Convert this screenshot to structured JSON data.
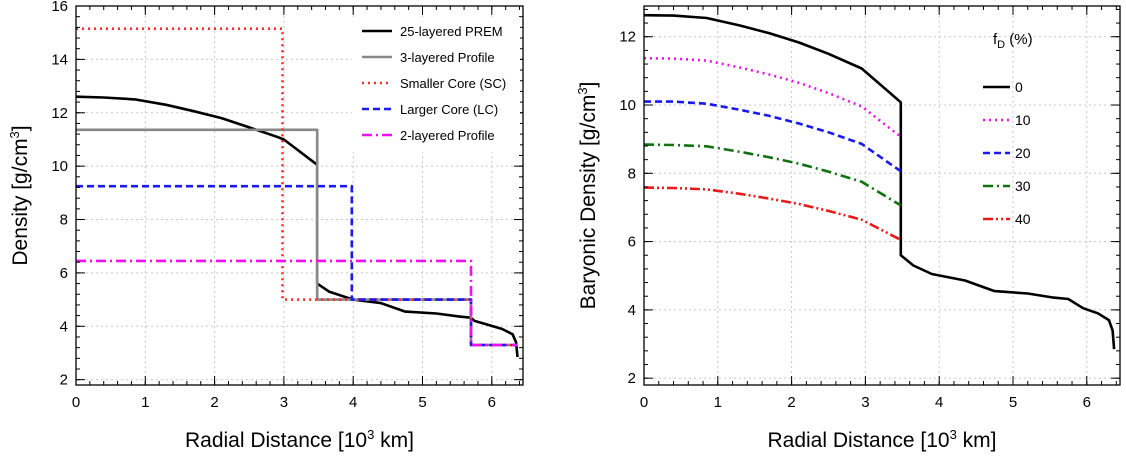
{
  "chart_data": [
    {
      "type": "line",
      "xlabel": "Radial Distance [10",
      "xlabel_sup": "3",
      "xlabel_end": " km]",
      "ylabel": "Density [g/cm",
      "ylabel_sup": "3",
      "ylabel_end": "]",
      "xlim": [
        0,
        6.45
      ],
      "ylim": [
        1.8,
        16
      ],
      "xticks": [
        "0",
        "1",
        "2",
        "3",
        "4",
        "5",
        "6"
      ],
      "yticks": [
        "2",
        "4",
        "6",
        "8",
        "10",
        "12",
        "14",
        "16"
      ],
      "grid": true,
      "legend_placement": "top-right",
      "series": [
        {
          "name": "25-layered PREM",
          "color": "#000000",
          "dash": "solid",
          "x": [
            0,
            0.4,
            0.85,
            1.3,
            1.7,
            2.1,
            2.5,
            2.9,
            3.0,
            3.48,
            3.48,
            3.65,
            4.0,
            4.4,
            4.75,
            5.2,
            5.55,
            5.7,
            5.75,
            5.95,
            6.15,
            6.3,
            6.35,
            6.37
          ],
          "y": [
            12.6,
            12.57,
            12.5,
            12.3,
            12.06,
            11.8,
            11.45,
            11.1,
            11.0,
            10.05,
            5.6,
            5.3,
            5.0,
            4.87,
            4.55,
            4.48,
            4.36,
            4.32,
            4.2,
            4.05,
            3.9,
            3.7,
            3.4,
            2.85
          ]
        },
        {
          "name": "3-layered Profile",
          "color": "#888888",
          "dash": "solid",
          "x": [
            0,
            3.48,
            3.48,
            5.7,
            5.7,
            6.37
          ],
          "y": [
            11.36,
            11.36,
            5.0,
            5.0,
            3.3,
            3.3
          ]
        },
        {
          "name": "Smaller Core (SC)",
          "color": "#ff2a2a",
          "dash": "dot",
          "x": [
            0,
            2.98,
            2.98,
            5.7,
            5.7,
            6.37
          ],
          "y": [
            15.15,
            15.15,
            5.0,
            5.0,
            3.3,
            3.3
          ]
        },
        {
          "name": "Larger Core (LC)",
          "color": "#1a1aee",
          "dash": "dash",
          "x": [
            0,
            3.98,
            3.98,
            5.7,
            5.7,
            6.37
          ],
          "y": [
            9.25,
            9.25,
            5.0,
            5.0,
            3.3,
            3.3
          ]
        },
        {
          "name": "2-layered Profile",
          "color": "#ee10ee",
          "dash": "dashdot",
          "x": [
            0,
            5.7,
            5.7,
            6.37
          ],
          "y": [
            6.45,
            6.45,
            3.3,
            3.3
          ]
        }
      ]
    },
    {
      "type": "line",
      "xlabel": "Radial Distance [10",
      "xlabel_sup": "3",
      "xlabel_end": " km]",
      "ylabel": "Baryonic Density [g/cm",
      "ylabel_sup": "3",
      "ylabel_end": "]",
      "xlim": [
        0,
        6.45
      ],
      "ylim": [
        1.8,
        12.9
      ],
      "xticks": [
        "0",
        "1",
        "2",
        "3",
        "4",
        "5",
        "6"
      ],
      "yticks": [
        "2",
        "4",
        "6",
        "8",
        "10",
        "12"
      ],
      "grid": true,
      "legend_placement": "top-right",
      "legend_title": "f",
      "legend_title_sub": "D",
      "legend_title_end": " (%)",
      "series": [
        {
          "name": "0",
          "color": "#000000",
          "dash": "solid",
          "x": [
            0,
            0.4,
            0.85,
            1.3,
            1.7,
            2.1,
            2.5,
            2.95,
            3.48,
            3.48,
            3.65,
            3.9,
            4.35,
            4.75,
            5.2,
            5.55,
            5.75,
            5.95,
            6.15,
            6.3,
            6.35,
            6.37
          ],
          "y": [
            12.63,
            12.62,
            12.55,
            12.33,
            12.1,
            11.83,
            11.5,
            11.07,
            10.08,
            5.6,
            5.3,
            5.05,
            4.86,
            4.55,
            4.48,
            4.36,
            4.32,
            4.05,
            3.9,
            3.7,
            3.4,
            2.85
          ]
        },
        {
          "name": "10",
          "color": "#ee10ee",
          "dash": "dot",
          "x": [
            0,
            0.4,
            0.85,
            1.3,
            1.7,
            2.1,
            2.5,
            2.95,
            3.48
          ],
          "y": [
            11.37,
            11.36,
            11.3,
            11.1,
            10.89,
            10.65,
            10.35,
            9.96,
            9.07
          ]
        },
        {
          "name": "20",
          "color": "#1a1aee",
          "dash": "dash",
          "x": [
            0,
            0.4,
            0.85,
            1.3,
            1.7,
            2.1,
            2.5,
            2.95,
            3.48
          ],
          "y": [
            10.1,
            10.1,
            10.04,
            9.86,
            9.68,
            9.46,
            9.2,
            8.86,
            8.06
          ]
        },
        {
          "name": "30",
          "color": "#127212",
          "dash": "dashdot",
          "x": [
            0,
            0.4,
            0.85,
            1.3,
            1.7,
            2.1,
            2.5,
            2.95,
            3.48
          ],
          "y": [
            8.84,
            8.83,
            8.79,
            8.63,
            8.47,
            8.28,
            8.05,
            7.75,
            7.06
          ]
        },
        {
          "name": "40",
          "color": "#e81b1b",
          "dash": "dashdotdot",
          "x": [
            0,
            0.4,
            0.85,
            1.3,
            1.7,
            2.1,
            2.5,
            2.95,
            3.48
          ],
          "y": [
            7.58,
            7.57,
            7.53,
            7.4,
            7.26,
            7.1,
            6.9,
            6.64,
            6.05
          ]
        }
      ]
    }
  ]
}
